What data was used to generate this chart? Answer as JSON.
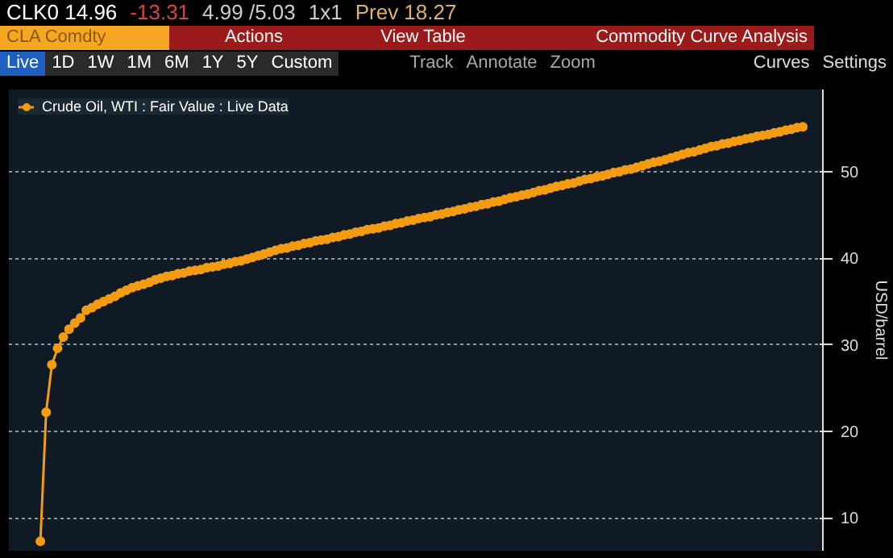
{
  "chart_data": {
    "type": "line",
    "annotations": [
      "CLK0 14.96",
      "-13.31",
      "4.99 /5.03",
      "1x1",
      "Prev 18.27",
      "CLA Comdty",
      "Actions",
      "View Table",
      "Commodity Curve Analysis",
      "Live",
      "1D",
      "1W",
      "1M",
      "6M",
      "1Y",
      "5Y",
      "Custom",
      "Track",
      "Annotate",
      "Zoom",
      "Curves",
      "Settings"
    ],
    "ylabel": "USD/barrel",
    "categories": [
      null,
      null,
      null,
      null,
      null,
      null,
      null,
      null,
      null,
      null,
      null,
      null,
      null,
      null,
      null,
      null,
      null,
      null,
      null,
      null,
      null,
      null,
      null,
      null,
      null,
      null,
      null,
      null,
      null,
      null,
      null,
      null,
      null,
      null,
      null,
      null,
      null,
      null,
      null,
      null,
      null,
      null,
      null,
      null,
      null,
      null,
      null,
      null,
      null,
      null,
      null,
      null,
      null,
      null,
      null,
      null,
      null,
      null,
      null,
      null,
      null,
      null,
      null,
      null,
      null,
      null,
      null,
      null,
      null,
      null,
      null,
      null,
      null,
      null,
      null,
      null,
      null,
      null,
      null,
      null,
      null,
      null,
      null,
      null,
      null,
      null,
      null,
      null,
      null,
      null,
      null,
      null,
      null,
      null,
      null,
      null,
      null,
      null,
      null,
      null,
      null,
      null,
      null,
      null,
      null,
      null,
      null,
      null,
      null,
      null,
      null,
      null,
      null,
      null,
      null,
      null,
      null,
      null,
      null,
      null,
      null,
      null,
      null,
      null,
      null,
      null,
      null,
      null,
      null,
      null,
      null,
      null,
      null,
      null
    ],
    "series": [
      {
        "name": "Crude Oil, WTI : Fair Value : Live Data",
        "color": "#f39c12",
        "values": [
          7.3,
          22.2,
          27.7,
          29.6,
          30.9,
          31.8,
          32.5,
          33.1,
          34.0,
          34.3,
          34.7,
          35.0,
          35.3,
          35.6,
          36.0,
          36.3,
          36.6,
          36.8,
          37.0,
          37.2,
          37.5,
          37.7,
          37.9,
          38.0,
          38.2,
          38.3,
          38.5,
          38.6,
          38.7,
          38.9,
          39.0,
          39.1,
          39.3,
          39.4,
          39.6,
          39.7,
          39.9,
          40.1,
          40.3,
          40.5,
          40.7,
          40.9,
          41.1,
          41.2,
          41.4,
          41.5,
          41.7,
          41.8,
          42.0,
          42.1,
          42.2,
          42.4,
          42.5,
          42.7,
          42.8,
          43.0,
          43.1,
          43.3,
          43.4,
          43.5,
          43.7,
          43.8,
          44.0,
          44.1,
          44.3,
          44.4,
          44.6,
          44.7,
          44.8,
          45.0,
          45.1,
          45.3,
          45.4,
          45.6,
          45.7,
          45.9,
          46.0,
          46.2,
          46.3,
          46.5,
          46.6,
          46.8,
          47.0,
          47.1,
          47.3,
          47.4,
          47.6,
          47.8,
          47.9,
          48.1,
          48.3,
          48.4,
          48.6,
          48.7,
          48.9,
          49.1,
          49.2,
          49.4,
          49.5,
          49.7,
          49.9,
          50.0,
          50.2,
          50.3,
          50.5,
          50.7,
          50.9,
          51.1,
          51.2,
          51.4,
          51.6,
          51.8,
          52.0,
          52.2,
          52.3,
          52.5,
          52.7,
          52.9,
          53.0,
          53.2,
          53.3,
          53.5,
          53.6,
          53.8,
          53.9,
          54.1,
          54.2,
          54.3,
          54.5,
          54.6,
          54.8,
          54.9,
          55.1,
          55.2
        ]
      }
    ],
    "ylim": [
      6.2,
      59.5
    ],
    "yticks": [
      10,
      20,
      30,
      40,
      50
    ],
    "grid": "y",
    "legend": "top left",
    "marker": "circle",
    "line_style": "solid"
  }
}
